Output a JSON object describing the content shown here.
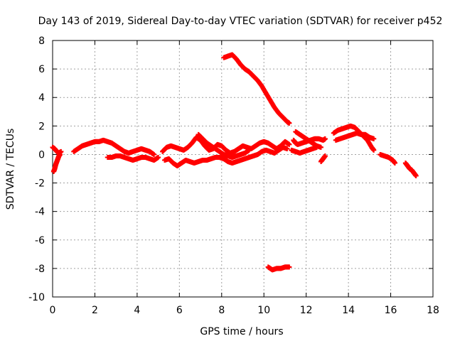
{
  "chart_data": {
    "type": "scatter",
    "title": "Day 143 of 2019, Sidereal Day-to-day VTEC variation (SDTVAR) for receiver p452",
    "xlabel": "GPS time / hours",
    "ylabel": "SDTVAR / TECUs",
    "xlim": [
      0,
      18
    ],
    "ylim": [
      -10,
      8
    ],
    "xticks": [
      0,
      2,
      4,
      6,
      8,
      10,
      12,
      14,
      16,
      18
    ],
    "yticks": [
      -10,
      -8,
      -6,
      -4,
      -2,
      0,
      2,
      4,
      6,
      8
    ],
    "grid": true,
    "marker": "plus",
    "series": [
      {
        "name": "p452",
        "color": "#ff0000",
        "segments": [
          [
            [
              0.0,
              0.5
            ],
            [
              0.1,
              0.4
            ],
            [
              0.2,
              0.2
            ],
            [
              0.3,
              0.1
            ],
            [
              0.4,
              0.2
            ]
          ],
          [
            [
              0.05,
              -1.2
            ],
            [
              0.1,
              -1.0
            ],
            [
              0.15,
              -0.7
            ],
            [
              0.2,
              -0.5
            ],
            [
              0.25,
              -0.3
            ],
            [
              0.3,
              -0.1
            ],
            [
              0.35,
              0.0
            ]
          ],
          [
            [
              1.0,
              0.2
            ],
            [
              1.2,
              0.4
            ],
            [
              1.4,
              0.6
            ],
            [
              1.6,
              0.7
            ],
            [
              1.8,
              0.8
            ],
            [
              2.0,
              0.9
            ],
            [
              2.2,
              0.9
            ],
            [
              2.4,
              1.0
            ],
            [
              2.6,
              0.9
            ],
            [
              2.8,
              0.8
            ],
            [
              3.0,
              0.6
            ],
            [
              3.2,
              0.4
            ],
            [
              3.4,
              0.2
            ],
            [
              3.6,
              0.1
            ],
            [
              3.8,
              0.2
            ],
            [
              4.0,
              0.3
            ],
            [
              4.2,
              0.4
            ],
            [
              4.4,
              0.3
            ],
            [
              4.6,
              0.2
            ],
            [
              4.8,
              0.0
            ]
          ],
          [
            [
              2.6,
              -0.2
            ],
            [
              2.8,
              -0.2
            ],
            [
              3.0,
              -0.1
            ],
            [
              3.2,
              -0.1
            ],
            [
              3.4,
              -0.2
            ],
            [
              3.6,
              -0.3
            ],
            [
              3.8,
              -0.4
            ],
            [
              4.0,
              -0.3
            ],
            [
              4.2,
              -0.2
            ],
            [
              4.4,
              -0.2
            ],
            [
              4.6,
              -0.3
            ],
            [
              4.8,
              -0.4
            ],
            [
              5.0,
              -0.2
            ]
          ],
          [
            [
              5.2,
              0.2
            ],
            [
              5.4,
              0.5
            ],
            [
              5.6,
              0.6
            ],
            [
              5.8,
              0.5
            ],
            [
              6.0,
              0.4
            ],
            [
              6.2,
              0.3
            ],
            [
              6.4,
              0.5
            ],
            [
              6.6,
              0.8
            ],
            [
              6.8,
              1.2
            ],
            [
              7.0,
              1.0
            ],
            [
              7.2,
              0.6
            ],
            [
              7.4,
              0.3
            ],
            [
              7.6,
              0.4
            ],
            [
              7.8,
              0.7
            ],
            [
              8.0,
              0.6
            ],
            [
              8.2,
              0.3
            ],
            [
              8.4,
              0.1
            ],
            [
              8.6,
              0.2
            ],
            [
              8.8,
              0.4
            ],
            [
              9.0,
              0.6
            ],
            [
              9.2,
              0.5
            ],
            [
              9.4,
              0.4
            ],
            [
              9.6,
              0.6
            ],
            [
              9.8,
              0.8
            ],
            [
              10.0,
              0.9
            ],
            [
              10.2,
              0.8
            ],
            [
              10.4,
              0.6
            ],
            [
              10.6,
              0.4
            ],
            [
              10.8,
              0.6
            ],
            [
              11.0,
              0.9
            ],
            [
              11.2,
              0.7
            ]
          ],
          [
            [
              5.3,
              -0.4
            ],
            [
              5.5,
              -0.3
            ],
            [
              5.7,
              -0.6
            ],
            [
              5.9,
              -0.8
            ],
            [
              6.1,
              -0.6
            ],
            [
              6.3,
              -0.4
            ],
            [
              6.5,
              -0.5
            ],
            [
              6.7,
              -0.6
            ],
            [
              6.9,
              -0.5
            ],
            [
              7.1,
              -0.4
            ],
            [
              7.3,
              -0.4
            ],
            [
              7.5,
              -0.3
            ],
            [
              7.7,
              -0.2
            ],
            [
              7.9,
              -0.2
            ],
            [
              8.1,
              -0.3
            ],
            [
              8.3,
              -0.5
            ],
            [
              8.5,
              -0.6
            ],
            [
              8.7,
              -0.5
            ],
            [
              8.9,
              -0.4
            ],
            [
              9.1,
              -0.3
            ],
            [
              9.3,
              -0.2
            ],
            [
              9.5,
              -0.1
            ],
            [
              9.7,
              0.0
            ],
            [
              9.9,
              0.2
            ],
            [
              10.1,
              0.3
            ],
            [
              10.3,
              0.2
            ],
            [
              10.5,
              0.1
            ],
            [
              10.7,
              0.3
            ],
            [
              10.9,
              0.5
            ],
            [
              11.1,
              0.4
            ]
          ],
          [
            [
              6.9,
              1.4
            ],
            [
              7.1,
              1.1
            ],
            [
              7.3,
              0.8
            ],
            [
              7.5,
              0.6
            ],
            [
              7.7,
              0.4
            ],
            [
              7.9,
              0.2
            ],
            [
              8.1,
              0.0
            ],
            [
              8.3,
              -0.1
            ],
            [
              8.5,
              -0.2
            ],
            [
              8.7,
              -0.1
            ],
            [
              8.9,
              0.0
            ],
            [
              9.1,
              0.1
            ],
            [
              9.3,
              0.3
            ]
          ],
          [
            [
              8.1,
              6.8
            ],
            [
              8.3,
              6.9
            ],
            [
              8.5,
              7.0
            ],
            [
              8.7,
              6.7
            ],
            [
              8.9,
              6.3
            ],
            [
              9.1,
              6.0
            ],
            [
              9.3,
              5.8
            ],
            [
              9.5,
              5.5
            ],
            [
              9.7,
              5.2
            ],
            [
              9.9,
              4.8
            ],
            [
              10.1,
              4.3
            ],
            [
              10.3,
              3.8
            ],
            [
              10.5,
              3.3
            ],
            [
              10.7,
              2.9
            ],
            [
              10.9,
              2.6
            ],
            [
              11.1,
              2.3
            ],
            [
              11.2,
              2.2
            ]
          ],
          [
            [
              10.2,
              -7.9
            ],
            [
              10.4,
              -8.1
            ],
            [
              10.6,
              -8.0
            ],
            [
              10.8,
              -8.0
            ],
            [
              11.0,
              -7.9
            ],
            [
              11.2,
              -7.9
            ]
          ],
          [
            [
              11.4,
              1.0
            ],
            [
              11.5,
              0.8
            ],
            [
              11.6,
              0.7
            ],
            [
              11.8,
              0.8
            ],
            [
              12.0,
              0.9
            ],
            [
              12.2,
              1.0
            ],
            [
              12.4,
              1.1
            ],
            [
              12.6,
              1.1
            ],
            [
              12.8,
              1.0
            ],
            [
              12.9,
              1.1
            ]
          ],
          [
            [
              11.5,
              1.6
            ],
            [
              11.7,
              1.4
            ],
            [
              11.9,
              1.2
            ],
            [
              12.1,
              1.0
            ],
            [
              12.3,
              0.8
            ],
            [
              12.5,
              0.6
            ],
            [
              12.7,
              0.5
            ]
          ],
          [
            [
              11.3,
              0.3
            ],
            [
              11.5,
              0.2
            ],
            [
              11.7,
              0.1
            ],
            [
              11.9,
              0.2
            ],
            [
              12.1,
              0.3
            ],
            [
              12.3,
              0.4
            ],
            [
              12.5,
              0.5
            ]
          ],
          [
            [
              12.7,
              -0.5
            ],
            [
              12.8,
              -0.3
            ],
            [
              12.9,
              -0.1
            ]
          ],
          [
            [
              13.3,
              1.5
            ],
            [
              13.5,
              1.7
            ],
            [
              13.7,
              1.8
            ],
            [
              13.9,
              1.9
            ],
            [
              14.1,
              2.0
            ],
            [
              14.3,
              1.9
            ],
            [
              14.5,
              1.6
            ],
            [
              14.7,
              1.3
            ],
            [
              14.9,
              1.0
            ],
            [
              15.1,
              0.5
            ],
            [
              15.2,
              0.3
            ]
          ],
          [
            [
              13.4,
              1.0
            ],
            [
              13.6,
              1.1
            ],
            [
              13.8,
              1.2
            ],
            [
              14.0,
              1.3
            ],
            [
              14.2,
              1.4
            ],
            [
              14.4,
              1.5
            ],
            [
              14.6,
              1.4
            ],
            [
              14.8,
              1.4
            ],
            [
              15.0,
              1.2
            ],
            [
              15.2,
              1.1
            ]
          ],
          [
            [
              15.5,
              0.0
            ],
            [
              15.7,
              -0.1
            ],
            [
              15.9,
              -0.2
            ],
            [
              16.1,
              -0.4
            ],
            [
              16.2,
              -0.6
            ]
          ],
          [
            [
              16.7,
              -0.6
            ],
            [
              16.8,
              -0.8
            ],
            [
              16.9,
              -1.0
            ],
            [
              17.0,
              -1.1
            ],
            [
              17.1,
              -1.3
            ],
            [
              17.2,
              -1.5
            ]
          ]
        ]
      }
    ]
  }
}
